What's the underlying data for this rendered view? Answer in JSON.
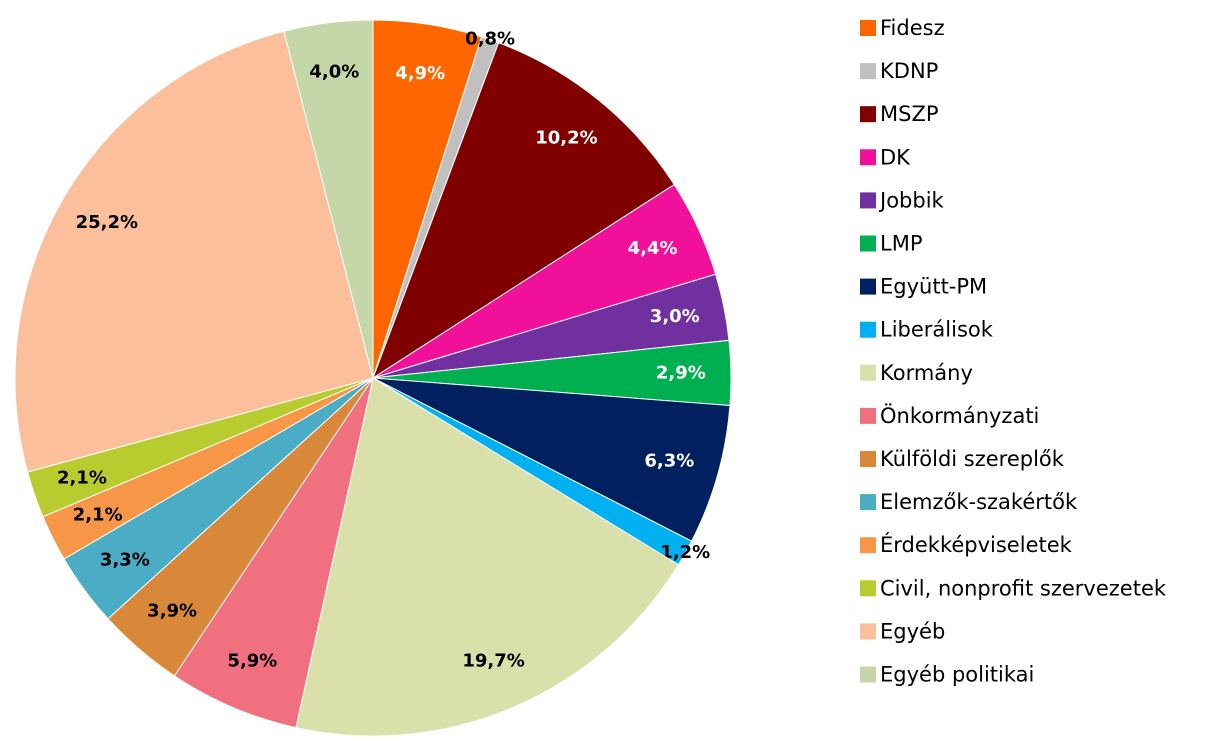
{
  "chart_data": {
    "type": "pie",
    "categories": [
      "Fidesz",
      "KDNP",
      "MSZP",
      "DK",
      "Jobbik",
      "LMP",
      "Együtt-PM",
      "Liberálisok",
      "Kormány",
      "Önkormányzati",
      "Külföldi szereplők",
      "Elemzők-szakértők",
      "Érdekképviseletek",
      "Civil, nonprofit szervezetek",
      "Egyéb",
      "Egyéb politikai"
    ],
    "values": [
      4.9,
      0.8,
      10.2,
      4.4,
      3.0,
      2.9,
      6.3,
      1.2,
      19.7,
      5.9,
      3.9,
      3.3,
      2.1,
      2.1,
      25.2,
      4.0
    ],
    "value_labels": [
      "4,9%",
      "0,8%",
      "10,2%",
      "4,4%",
      "3,0%",
      "2,9%",
      "6,3%",
      "1,2%",
      "19,7%",
      "5,9%",
      "3,9%",
      "3,3%",
      "2,1%",
      "2,1%",
      "25,2%",
      "4,0%"
    ],
    "colors": [
      "#ff6600",
      "#c0c0c0",
      "#800000",
      "#f0109a",
      "#7030a0",
      "#00b050",
      "#002060",
      "#00b0f0",
      "#d9e0aa",
      "#f07080",
      "#d9883a",
      "#4bacc6",
      "#f79646",
      "#b8cc30",
      "#fbbf9c",
      "#c5d6a8"
    ],
    "legend": "right"
  }
}
